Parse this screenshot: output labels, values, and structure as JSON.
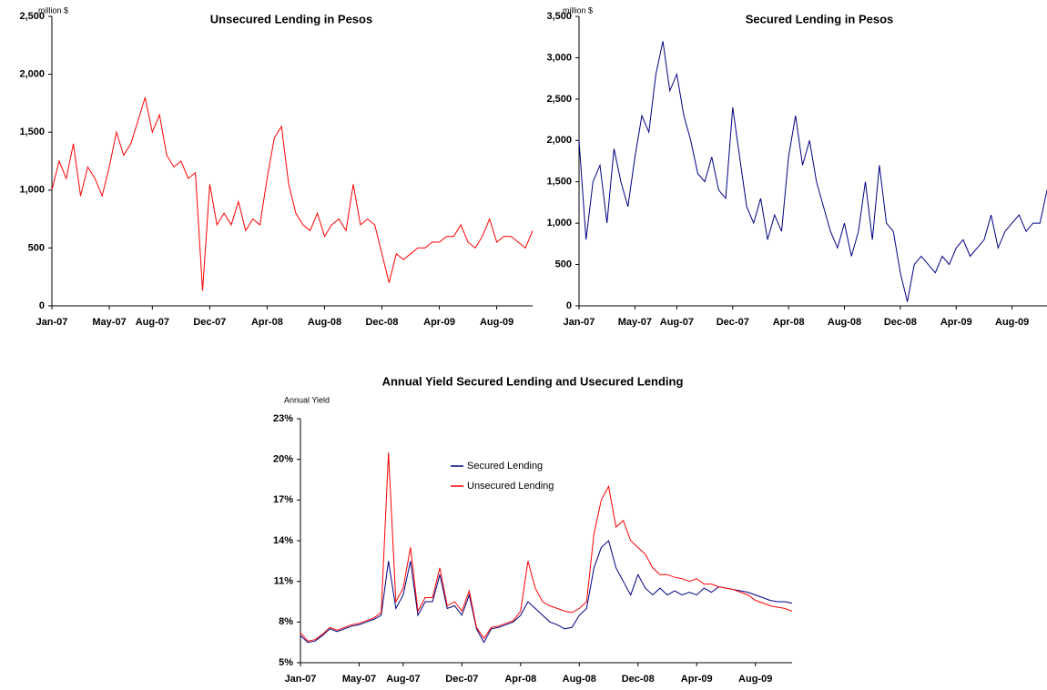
{
  "chart_data": [
    {
      "type": "line",
      "title": "Unsecured Lending in Pesos",
      "ylabel": "million $",
      "color": "#ff0000",
      "categories": [
        "Jan-07",
        null,
        null,
        null,
        null,
        null,
        null,
        null,
        "May-07",
        null,
        null,
        null,
        null,
        null,
        "Aug-07",
        null,
        null,
        null,
        null,
        null,
        null,
        null,
        "Dec-07",
        null,
        null,
        null,
        null,
        null,
        null,
        null,
        "Apr-08",
        null,
        null,
        null,
        null,
        null,
        null,
        null,
        "Aug-08",
        null,
        null,
        null,
        null,
        null,
        null,
        null,
        "Dec-08",
        null,
        null,
        null,
        null,
        null,
        null,
        null,
        "Apr-09",
        null,
        null,
        null,
        null,
        null,
        null,
        null,
        "Aug-09",
        null,
        null,
        null,
        null,
        null
      ],
      "values": [
        1000,
        1250,
        1100,
        1400,
        950,
        1200,
        1100,
        950,
        1200,
        1500,
        1300,
        1400,
        1600,
        1800,
        1500,
        1650,
        1300,
        1200,
        1250,
        1100,
        1150,
        130,
        1050,
        700,
        800,
        700,
        900,
        650,
        750,
        700,
        1100,
        1450,
        1550,
        1050,
        800,
        700,
        650,
        800,
        600,
        700,
        750,
        650,
        1050,
        700,
        750,
        700,
        450,
        200,
        450,
        400,
        450,
        500,
        500,
        550,
        550,
        600,
        600,
        700,
        550,
        500,
        600,
        750,
        550,
        600,
        600,
        550,
        500,
        650
      ],
      "ylim": [
        0,
        2500
      ],
      "yticks": [
        0,
        500,
        {
          "value": 1000,
          "label": "1,000"
        },
        {
          "value": 1500,
          "label": "1,500"
        },
        {
          "value": 2000,
          "label": "2,000"
        },
        {
          "value": 2500,
          "label": "2,500"
        }
      ]
    },
    {
      "type": "line",
      "title": "Secured Lending in Pesos",
      "ylabel": "million $",
      "color": "#000080",
      "categories": [
        "Jan-07",
        null,
        null,
        null,
        null,
        null,
        null,
        null,
        "May-07",
        null,
        null,
        null,
        null,
        null,
        "Aug-07",
        null,
        null,
        null,
        null,
        null,
        null,
        null,
        "Dec-07",
        null,
        null,
        null,
        null,
        null,
        null,
        null,
        "Apr-08",
        null,
        null,
        null,
        null,
        null,
        null,
        null,
        "Aug-08",
        null,
        null,
        null,
        null,
        null,
        null,
        null,
        "Dec-08",
        null,
        null,
        null,
        null,
        null,
        null,
        null,
        "Apr-09",
        null,
        null,
        null,
        null,
        null,
        null,
        null,
        "Aug-09",
        null,
        null,
        null,
        null,
        null
      ],
      "values": [
        2000,
        800,
        1500,
        1700,
        1000,
        1900,
        1500,
        1200,
        1800,
        2300,
        2100,
        2800,
        3200,
        2600,
        2800,
        2300,
        2000,
        1600,
        1500,
        1800,
        1400,
        1300,
        2400,
        1800,
        1200,
        1000,
        1300,
        800,
        1100,
        900,
        1800,
        2300,
        1700,
        2000,
        1500,
        1200,
        900,
        700,
        1000,
        600,
        900,
        1500,
        800,
        1700,
        1000,
        900,
        400,
        50,
        500,
        600,
        500,
        400,
        600,
        500,
        700,
        800,
        600,
        700,
        800,
        1100,
        700,
        900,
        1000,
        1100,
        900,
        1000,
        1000,
        1400
      ],
      "ylim": [
        0,
        3500
      ],
      "yticks": [
        0,
        500,
        {
          "value": 1000,
          "label": "1,000"
        },
        {
          "value": 1500,
          "label": "1,500"
        },
        {
          "value": 2000,
          "label": "2,000"
        },
        {
          "value": 2500,
          "label": "2,500"
        },
        {
          "value": 3000,
          "label": "3,000"
        },
        {
          "value": 3500,
          "label": "3,500"
        }
      ]
    },
    {
      "type": "line",
      "title": "Annual Yield Secured Lending and Usecured Lending",
      "ylabel": "Annual Yield",
      "categories": [
        "Jan-07",
        null,
        null,
        null,
        null,
        null,
        null,
        null,
        "May-07",
        null,
        null,
        null,
        null,
        null,
        "Aug-07",
        null,
        null,
        null,
        null,
        null,
        null,
        null,
        "Dec-07",
        null,
        null,
        null,
        null,
        null,
        null,
        null,
        "Apr-08",
        null,
        null,
        null,
        null,
        null,
        null,
        null,
        "Aug-08",
        null,
        null,
        null,
        null,
        null,
        null,
        null,
        "Dec-08",
        null,
        null,
        null,
        null,
        null,
        null,
        null,
        "Apr-09",
        null,
        null,
        null,
        null,
        null,
        null,
        null,
        "Aug-09",
        null,
        null,
        null,
        null,
        null
      ],
      "series": [
        {
          "name": "Secured Lending",
          "color": "#000080",
          "values": [
            7.0,
            6.5,
            6.6,
            7.0,
            7.5,
            7.3,
            7.5,
            7.7,
            7.8,
            8.0,
            8.2,
            8.5,
            12.5,
            9.0,
            10.0,
            12.5,
            8.5,
            9.5,
            9.5,
            11.5,
            9.0,
            9.2,
            8.5,
            10.0,
            7.5,
            6.5,
            7.5,
            7.6,
            7.8,
            8.0,
            8.5,
            9.5,
            9.0,
            8.5,
            8.0,
            7.8,
            7.5,
            7.6,
            8.5,
            9.0,
            12.0,
            13.5,
            14.0,
            12.0,
            11.0,
            10.0,
            11.5,
            10.5,
            10.0,
            10.5,
            10.0,
            10.3,
            10.0,
            10.2,
            10.0,
            10.5,
            10.2,
            10.6,
            10.5,
            10.4,
            10.3,
            10.2,
            10.0,
            9.8,
            9.6,
            9.5,
            9.5,
            9.4
          ]
        },
        {
          "name": "Unsecured Lending",
          "color": "#ff0000",
          "values": [
            7.2,
            6.6,
            6.7,
            7.1,
            7.6,
            7.4,
            7.6,
            7.8,
            7.9,
            8.1,
            8.3,
            8.7,
            20.5,
            9.5,
            10.5,
            13.5,
            8.8,
            9.8,
            9.8,
            12.0,
            9.2,
            9.5,
            8.8,
            10.3,
            7.6,
            6.8,
            7.6,
            7.7,
            7.9,
            8.1,
            8.8,
            12.5,
            10.5,
            9.5,
            9.2,
            9.0,
            8.8,
            8.7,
            9.0,
            9.5,
            14.5,
            17.0,
            18.0,
            15.0,
            15.5,
            14.0,
            13.5,
            13.0,
            12.0,
            11.5,
            11.5,
            11.3,
            11.2,
            11.0,
            11.2,
            10.8,
            10.8,
            10.6,
            10.5,
            10.4,
            10.2,
            10.0,
            9.6,
            9.4,
            9.2,
            9.1,
            9.0,
            8.8
          ]
        }
      ],
      "ylim": [
        5,
        23
      ],
      "yticks": [
        {
          "value": 5,
          "label": "5%"
        },
        {
          "value": 8,
          "label": "8%"
        },
        {
          "value": 11,
          "label": "11%"
        },
        {
          "value": 14,
          "label": "14%"
        },
        {
          "value": 17,
          "label": "17%"
        },
        {
          "value": 20,
          "label": "20%"
        },
        {
          "value": 23,
          "label": "23%"
        }
      ]
    }
  ]
}
